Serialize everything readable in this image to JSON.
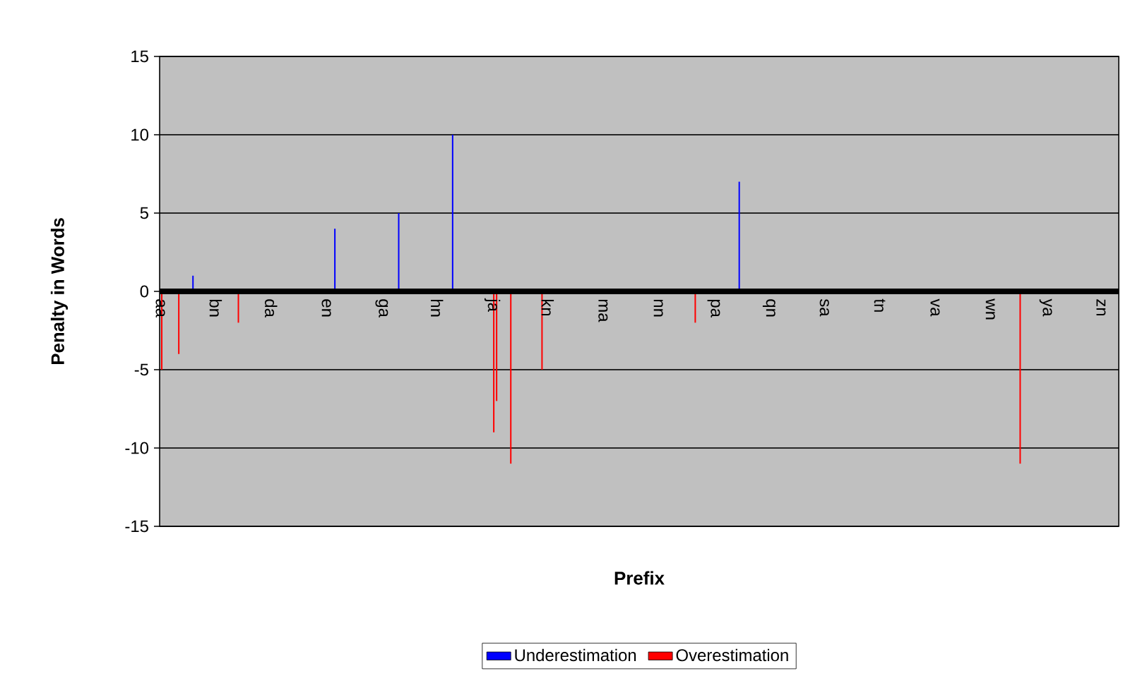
{
  "chart_data": {
    "type": "bar",
    "xlabel": "Prefix",
    "ylabel": "Penalty in Words",
    "ylim": [
      -15,
      15
    ],
    "yticks": [
      -15,
      -10,
      -5,
      0,
      5,
      10,
      15
    ],
    "grid": "y",
    "legend": "bottom",
    "categories": [
      "aa",
      null,
      null,
      null,
      null,
      null,
      null,
      null,
      null,
      null,
      null,
      null,
      null,
      null,
      null,
      null,
      null,
      null,
      null,
      null,
      null,
      null,
      null,
      null,
      null,
      null,
      null,
      null,
      null,
      null,
      null,
      null,
      null,
      null,
      null,
      null,
      null,
      null,
      null,
      "bn",
      null,
      null,
      null,
      null,
      null,
      null,
      null,
      null,
      null,
      null,
      null,
      null,
      null,
      null,
      null,
      null,
      null,
      null,
      null,
      null,
      null,
      null,
      null,
      null,
      null,
      null,
      null,
      null,
      null,
      null,
      null,
      null,
      null,
      null,
      null,
      null,
      null,
      null,
      "da",
      null,
      null,
      null,
      null,
      null,
      null,
      null,
      null,
      null,
      null,
      null,
      null,
      null,
      null,
      null,
      null,
      null,
      null,
      null,
      null,
      null,
      null,
      null,
      null,
      null,
      null,
      null,
      null,
      null,
      null,
      null,
      null,
      null,
      null,
      null,
      null,
      null,
      null,
      "en",
      null,
      null,
      null,
      null,
      null,
      null,
      null,
      null,
      null,
      null,
      null,
      null,
      null,
      null,
      null,
      null,
      null,
      null,
      null,
      null,
      null,
      null,
      null,
      null,
      null,
      null,
      null,
      null,
      null,
      null,
      null,
      null,
      null,
      null,
      null,
      null,
      null,
      null,
      "ga",
      null,
      null,
      null,
      null,
      null,
      null,
      null,
      null,
      null,
      null,
      null,
      null,
      null,
      null,
      null,
      null,
      null,
      null,
      null,
      null,
      null,
      null,
      null,
      null,
      null,
      null,
      null,
      null,
      null,
      null,
      null,
      null,
      null,
      null,
      null,
      null,
      null,
      null,
      "hn",
      null,
      null,
      null,
      null,
      null,
      null,
      null,
      null,
      null,
      null,
      null,
      null,
      null,
      null,
      null,
      null,
      null,
      null,
      null,
      null,
      null,
      null,
      null,
      null,
      null,
      null,
      null,
      null,
      null,
      null,
      null,
      null,
      null,
      null,
      null,
      null,
      null,
      null,
      "ja",
      null,
      null,
      null,
      null,
      null,
      null,
      null,
      null,
      null,
      null,
      null,
      null,
      null,
      null,
      null,
      null,
      null,
      null,
      null,
      null,
      null,
      null,
      null,
      null,
      null,
      null,
      null,
      null,
      null,
      null,
      null,
      null,
      null,
      null,
      null,
      null,
      null,
      null,
      "kn",
      null,
      null,
      null,
      null,
      null,
      null,
      null,
      null,
      null,
      null,
      null,
      null,
      null,
      null,
      null,
      null,
      null,
      null,
      null,
      null,
      null,
      null,
      null,
      null,
      null,
      null,
      null,
      null,
      null,
      null,
      null,
      null,
      null,
      null,
      null,
      null,
      null,
      null,
      "ma",
      null,
      null,
      null,
      null,
      null,
      null,
      null,
      null,
      null,
      null,
      null,
      null,
      null,
      null,
      null,
      null,
      null,
      null,
      null,
      null,
      null,
      null,
      null,
      null,
      null,
      null,
      null,
      null,
      null,
      null,
      null,
      null,
      null,
      null,
      null,
      null,
      null,
      null,
      "nn",
      null,
      null,
      null,
      null,
      null,
      null,
      null,
      null,
      null,
      null,
      null,
      null,
      null,
      null,
      null,
      null,
      null,
      null,
      null,
      null,
      null,
      null,
      null,
      null,
      null,
      null,
      null,
      null,
      null,
      null,
      null,
      null,
      null,
      null,
      null,
      null,
      null,
      null,
      "pa",
      null,
      null,
      null,
      null,
      null,
      null,
      null,
      null,
      null,
      null,
      null,
      null,
      null,
      null,
      null,
      null,
      null,
      null,
      null,
      null,
      null,
      null,
      null,
      null,
      null,
      null,
      null,
      null,
      null,
      null,
      null,
      null,
      null,
      null,
      null,
      null,
      null,
      null,
      "qn",
      null,
      null,
      null,
      null,
      null,
      null,
      null,
      null,
      null,
      null,
      null,
      null,
      null,
      null,
      null,
      null,
      null,
      null,
      null,
      null,
      null,
      null,
      null,
      null,
      null,
      null,
      null,
      null,
      null,
      null,
      null,
      null,
      null,
      null,
      null,
      null,
      null,
      null,
      "sa",
      null,
      null,
      null,
      null,
      null,
      null,
      null,
      null,
      null,
      null,
      null,
      null,
      null,
      null,
      null,
      null,
      null,
      null,
      null,
      null,
      null,
      null,
      null,
      null,
      null,
      null,
      null,
      null,
      null,
      null,
      null,
      null,
      null,
      null,
      null,
      null,
      null,
      null,
      "tn",
      null,
      null,
      null,
      null,
      null,
      null,
      null,
      null,
      null,
      null,
      null,
      null,
      null,
      null,
      null,
      null,
      null,
      null,
      null,
      null,
      null,
      null,
      null,
      null,
      null,
      null,
      null,
      null,
      null,
      null,
      null,
      null,
      null,
      null,
      null,
      null,
      null,
      null,
      "va",
      null,
      null,
      null,
      null,
      null,
      null,
      null,
      null,
      null,
      null,
      null,
      null,
      null,
      null,
      null,
      null,
      null,
      null,
      null,
      null,
      null,
      null,
      null,
      null,
      null,
      null,
      null,
      null,
      null,
      null,
      null,
      null,
      null,
      null,
      null,
      null,
      null,
      null,
      "wn",
      null,
      null,
      null,
      null,
      null,
      null,
      null,
      null,
      null,
      null,
      null,
      null,
      null,
      null,
      null,
      null,
      null,
      null,
      null,
      null,
      null,
      null,
      null,
      null,
      null,
      null,
      null,
      null,
      null,
      null,
      null,
      null,
      null,
      null,
      null,
      null,
      null,
      null,
      "ya",
      null,
      null,
      null,
      null,
      null,
      null,
      null,
      null,
      null,
      null,
      null,
      null,
      null,
      null,
      null,
      null,
      null,
      null,
      null,
      null,
      null,
      null,
      null,
      null,
      null,
      null,
      null,
      null,
      null,
      null,
      null,
      null,
      null,
      null,
      null,
      null,
      null,
      null,
      "zn",
      null,
      null,
      null,
      null,
      null,
      null,
      null,
      null,
      null,
      null,
      null,
      null
    ],
    "series": [
      {
        "name": "Underestimation",
        "color": "#0000ff",
        "values": [
          null,
          null,
          null,
          null,
          null,
          null,
          null,
          null,
          null,
          null,
          null,
          null,
          null,
          null,
          null,
          null,
          null,
          null,
          null,
          null,
          null,
          null,
          null,
          1,
          null,
          null,
          null,
          null,
          null,
          null,
          null,
          null,
          null,
          null,
          null,
          null,
          null,
          null,
          null,
          null,
          null,
          null,
          null,
          null,
          null,
          null,
          null,
          null,
          null,
          null,
          null,
          null,
          null,
          null,
          null,
          null,
          null,
          null,
          null,
          null,
          null,
          null,
          null,
          null,
          null,
          null,
          null,
          null,
          null,
          null,
          null,
          null,
          null,
          null,
          null,
          null,
          null,
          null,
          null,
          null,
          null,
          null,
          null,
          null,
          null,
          null,
          null,
          null,
          null,
          null,
          null,
          null,
          null,
          null,
          null,
          null,
          null,
          null,
          null,
          null,
          null,
          null,
          null,
          null,
          null,
          null,
          null,
          null,
          null,
          null,
          null,
          null,
          null,
          null,
          null,
          null,
          null,
          null,
          null,
          null,
          null,
          null,
          null,
          4,
          null,
          null,
          null,
          null,
          null,
          null,
          null,
          null,
          null,
          null,
          null,
          null,
          null,
          null,
          null,
          null,
          null,
          null,
          null,
          null,
          null,
          null,
          null,
          null,
          null,
          null,
          null,
          null,
          null,
          null,
          null,
          null,
          null,
          null,
          null,
          null,
          null,
          null,
          null,
          null,
          null,
          null,
          null,
          null,
          5,
          null,
          null,
          null,
          null,
          null,
          null,
          null,
          null,
          null,
          null,
          null,
          null,
          null,
          null,
          null,
          null,
          null,
          null,
          null,
          null,
          null,
          null,
          null,
          null,
          null,
          null,
          null,
          null,
          null,
          null,
          null,
          null,
          null,
          null,
          null,
          null,
          null,
          10,
          null,
          null,
          null,
          null,
          null,
          null,
          null,
          null,
          null,
          null,
          null,
          null,
          null,
          null,
          null,
          null,
          null,
          null,
          null,
          null,
          null,
          null,
          null,
          null,
          null,
          null,
          null,
          null,
          null,
          null,
          null,
          null,
          null,
          null,
          null,
          null,
          null,
          null,
          null,
          null,
          null,
          null,
          null,
          null,
          null,
          null,
          null,
          null,
          null,
          null,
          null,
          null,
          null,
          null,
          null,
          null,
          null,
          null,
          null,
          null,
          null,
          null,
          null,
          null,
          null,
          null,
          null,
          null,
          null,
          null,
          null,
          null,
          null,
          null,
          null,
          null,
          null,
          null,
          null,
          null,
          null,
          null,
          null,
          null,
          null,
          null,
          null,
          null,
          null,
          null,
          null,
          null,
          null,
          null,
          null,
          null,
          null,
          null,
          null,
          null,
          null,
          null,
          null,
          null,
          null,
          null,
          null,
          null,
          null,
          null,
          null,
          null,
          null,
          null,
          null,
          null,
          null,
          null,
          null,
          null,
          null,
          null,
          null,
          null,
          null,
          null,
          null,
          null,
          null,
          null,
          null,
          null,
          null,
          null,
          null,
          null,
          null,
          null,
          null,
          null,
          null,
          null,
          null,
          null,
          null,
          null,
          null,
          null,
          null,
          null,
          null,
          null,
          null,
          null,
          null,
          null,
          null,
          null,
          null,
          null,
          null,
          null,
          null,
          null,
          null,
          null,
          null,
          null,
          null,
          null,
          null,
          null,
          null,
          null,
          null,
          null,
          null,
          null,
          null,
          null,
          null,
          null,
          null,
          null,
          null,
          null,
          null,
          null,
          null,
          null,
          null,
          null,
          null,
          null,
          null,
          null,
          null,
          null,
          null,
          null,
          null,
          7,
          null,
          null,
          null,
          null,
          null,
          null,
          null,
          null,
          null,
          null,
          null,
          null,
          null,
          null,
          null,
          null,
          null,
          null,
          null,
          null,
          null,
          null,
          null,
          null,
          null,
          null,
          null,
          null,
          null,
          null,
          null,
          null,
          null,
          null,
          null,
          null,
          null,
          null,
          null,
          null,
          null,
          null,
          null,
          null,
          null,
          null,
          null,
          null,
          null,
          null,
          null,
          null,
          null,
          null,
          null,
          null,
          null,
          null,
          null,
          null,
          null,
          null,
          null,
          null,
          null,
          null,
          null,
          null,
          null,
          null,
          null,
          null,
          null,
          null,
          null,
          null,
          null,
          null,
          null,
          null,
          null,
          null,
          null,
          null,
          null,
          null,
          null,
          null,
          null,
          null,
          null,
          null,
          null,
          null,
          null,
          null,
          null,
          null,
          null,
          null,
          null,
          null,
          null,
          null,
          null,
          null,
          null,
          null,
          null,
          null,
          null,
          null,
          null,
          null,
          null,
          null,
          null,
          null,
          null,
          null,
          null,
          null,
          null,
          null,
          null,
          null,
          null,
          null,
          null,
          null,
          null,
          null,
          null,
          null,
          null,
          null,
          null,
          null,
          null,
          null,
          null,
          null,
          null,
          null,
          null,
          null,
          null,
          null,
          null,
          null,
          null,
          null,
          null,
          null,
          null,
          null,
          null,
          null,
          null,
          null,
          null,
          null,
          null,
          null,
          null,
          null,
          null,
          null,
          null,
          null,
          null,
          null,
          null,
          null,
          null,
          null,
          null,
          null,
          null,
          null,
          null,
          null,
          null,
          null,
          null,
          null,
          null,
          null,
          null,
          null,
          null,
          null,
          null,
          null,
          null,
          null,
          null,
          null,
          null,
          null,
          null,
          null,
          null,
          null,
          null,
          null,
          null,
          null,
          null,
          null,
          null,
          null,
          null,
          null,
          null,
          null,
          null,
          null,
          null,
          null,
          null,
          null,
          null,
          null,
          null,
          null,
          null,
          null,
          null,
          null,
          null,
          null,
          null,
          null,
          null,
          null,
          null,
          null,
          null,
          null,
          null,
          null,
          null,
          null,
          null,
          null,
          null,
          null,
          null,
          null,
          null,
          null,
          null,
          null,
          null,
          null,
          null,
          null,
          null,
          null,
          null,
          null,
          null,
          null,
          null,
          null,
          null
        ]
      },
      {
        "name": "Overestimation",
        "color": "#ff0000",
        "values": [
          null,
          -5,
          null,
          null,
          null,
          null,
          null,
          null,
          null,
          null,
          null,
          null,
          null,
          -4,
          null,
          null,
          null,
          null,
          null,
          null,
          null,
          null,
          null,
          null,
          null,
          null,
          null,
          null,
          null,
          null,
          null,
          null,
          null,
          null,
          null,
          null,
          null,
          null,
          null,
          null,
          null,
          null,
          null,
          null,
          null,
          null,
          null,
          null,
          null,
          null,
          null,
          null,
          null,
          null,
          null,
          -2,
          null,
          null,
          null,
          null,
          null,
          null,
          null,
          null,
          null,
          null,
          null,
          null,
          null,
          null,
          null,
          null,
          null,
          null,
          null,
          null,
          null,
          null,
          null,
          null,
          null,
          null,
          null,
          null,
          null,
          null,
          null,
          null,
          null,
          null,
          null,
          null,
          null,
          null,
          null,
          null,
          null,
          null,
          null,
          null,
          null,
          null,
          null,
          null,
          null,
          null,
          null,
          null,
          null,
          null,
          null,
          null,
          null,
          null,
          null,
          null,
          null,
          null,
          null,
          null,
          null,
          null,
          null,
          null,
          null,
          null,
          null,
          null,
          null,
          null,
          null,
          null,
          null,
          null,
          null,
          null,
          null,
          null,
          null,
          null,
          null,
          null,
          null,
          null,
          null,
          null,
          null,
          null,
          null,
          null,
          null,
          null,
          null,
          null,
          null,
          null,
          null,
          null,
          null,
          null,
          null,
          null,
          null,
          null,
          null,
          null,
          null,
          null,
          null,
          null,
          null,
          null,
          null,
          null,
          null,
          null,
          null,
          null,
          null,
          null,
          null,
          null,
          null,
          null,
          null,
          null,
          null,
          null,
          null,
          null,
          null,
          null,
          null,
          null,
          null,
          null,
          null,
          null,
          null,
          null,
          null,
          null,
          null,
          null,
          null,
          null,
          null,
          null,
          null,
          null,
          null,
          null,
          null,
          null,
          null,
          null,
          null,
          null,
          null,
          null,
          null,
          null,
          null,
          null,
          null,
          null,
          null,
          null,
          null,
          null,
          null,
          null,
          null,
          null,
          null,
          -9,
          null,
          -7,
          null,
          null,
          null,
          null,
          null,
          null,
          null,
          null,
          null,
          -11,
          null,
          null,
          null,
          null,
          null,
          null,
          null,
          null,
          null,
          null,
          null,
          null,
          null,
          null,
          null,
          null,
          null,
          null,
          null,
          null,
          null,
          -5,
          null,
          null,
          null,
          null,
          null,
          null,
          null,
          null,
          null,
          null,
          null,
          null,
          null,
          null,
          null,
          null,
          null,
          null,
          null,
          null,
          null,
          null,
          null,
          null,
          null,
          null,
          null,
          null,
          null,
          null,
          null,
          null,
          null,
          null,
          null,
          null,
          null,
          null,
          null,
          null,
          null,
          null,
          null,
          null,
          null,
          null,
          null,
          null,
          null,
          null,
          null,
          null,
          null,
          null,
          null,
          null,
          null,
          null,
          null,
          null,
          null,
          null,
          null,
          null,
          null,
          null,
          null,
          null,
          null,
          null,
          null,
          null,
          null,
          null,
          null,
          null,
          null,
          null,
          null,
          null,
          null,
          null,
          null,
          null,
          null,
          null,
          null,
          null,
          null,
          null,
          null,
          null,
          null,
          null,
          null,
          null,
          null,
          null,
          null,
          null,
          null,
          null,
          null,
          null,
          null,
          null,
          null,
          -2,
          null,
          null,
          null,
          null,
          null,
          null,
          null,
          null,
          null,
          null,
          null,
          null,
          null,
          null,
          null,
          null,
          null,
          null,
          null,
          null,
          null,
          null,
          null,
          null,
          null,
          null,
          null,
          null,
          null,
          null,
          null,
          null,
          null,
          null,
          null,
          null,
          null,
          null,
          null,
          null,
          null,
          null,
          null,
          null,
          null,
          null,
          null,
          null,
          null,
          null,
          null,
          null,
          null,
          null,
          null,
          null,
          null,
          null,
          null,
          null,
          null,
          null,
          null,
          null,
          null,
          null,
          null,
          null,
          null,
          null,
          null,
          null,
          null,
          null,
          null,
          null,
          null,
          null,
          null,
          null,
          null,
          null,
          null,
          null,
          null,
          null,
          null,
          null,
          null,
          null,
          null,
          null,
          null,
          null,
          null,
          null,
          null,
          null,
          null,
          null,
          null,
          null,
          null,
          null,
          null,
          null,
          null,
          null,
          null,
          null,
          null,
          null,
          null,
          null,
          null,
          null,
          null,
          null,
          null,
          null,
          null,
          null,
          null,
          null,
          null,
          null,
          null,
          null,
          null,
          null,
          null,
          null,
          null,
          null,
          null,
          null,
          null,
          null,
          null,
          null,
          null,
          null,
          null,
          null,
          null,
          null,
          null,
          null,
          null,
          null,
          null,
          null,
          null,
          null,
          null,
          null,
          null,
          null,
          null,
          null,
          null,
          null,
          null,
          null,
          null,
          null,
          null,
          null,
          null,
          null,
          null,
          null,
          null,
          null,
          null,
          null,
          null,
          null,
          null,
          null,
          null,
          null,
          null,
          null,
          null,
          null,
          null,
          null,
          null,
          null,
          null,
          null,
          null,
          null,
          null,
          null,
          null,
          null,
          null,
          null,
          null,
          null,
          null,
          null,
          null,
          null,
          null,
          null,
          null,
          null,
          null,
          null,
          null,
          null,
          null,
          null,
          null,
          null,
          null,
          null,
          null,
          null,
          null,
          null,
          null,
          null,
          null,
          null,
          -11,
          null,
          null,
          null,
          null,
          null,
          null,
          null,
          null,
          null,
          null,
          null,
          null,
          null,
          null,
          null,
          null,
          null,
          null,
          null,
          null,
          null,
          null,
          null,
          null,
          null,
          null,
          null,
          null,
          null,
          null,
          null,
          null,
          null,
          null,
          null,
          null,
          null,
          null,
          null,
          null,
          null,
          null,
          null,
          null,
          null,
          null,
          null,
          null,
          null,
          null,
          null,
          null,
          null,
          null,
          null,
          null,
          null,
          null,
          null,
          null,
          null,
          null,
          null,
          null,
          null,
          null,
          null,
          null,
          null
        ]
      }
    ]
  }
}
